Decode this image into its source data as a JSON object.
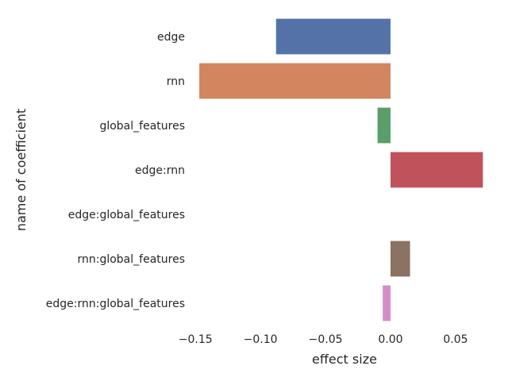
{
  "chart_data": {
    "type": "bar",
    "orientation": "horizontal",
    "categories": [
      "edge",
      "rnn",
      "global_features",
      "edge:rnn",
      "edge:global_features",
      "rnn:global_features",
      "edge:rnn:global_features"
    ],
    "values": [
      -0.088,
      -0.147,
      -0.01,
      0.071,
      0.0,
      0.015,
      -0.006
    ],
    "colors": [
      "#5572a8",
      "#d2855e",
      "#5a9e6a",
      "#c0525b",
      "#8172b2",
      "#8c7262",
      "#d48cc7"
    ],
    "xlabel": "effect size",
    "ylabel": "name of coefficient",
    "xticks": [
      -0.15,
      -0.1,
      -0.05,
      0.0,
      0.05
    ],
    "xtick_labels": [
      "−0.15",
      "−0.10",
      "−0.05",
      "0.00",
      "0.05"
    ],
    "xlim": [
      -0.155,
      0.072
    ],
    "grid": false,
    "legend": "none"
  }
}
